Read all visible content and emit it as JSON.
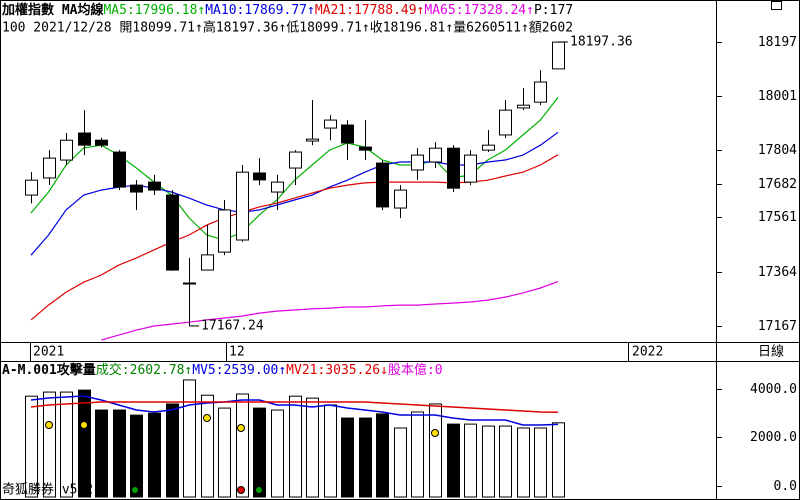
{
  "chart_data": [
    {
      "type": "candlestick",
      "title": "加權指數 MA均線",
      "info": "100 2021/12/28 開18099.71↑高18197.36↑低18099.71↑收18196.81↑量6260511↑額2602",
      "ylim": [
        17109,
        18277
      ],
      "yticks": [
        17167,
        17364,
        17561,
        17682,
        17804,
        18001,
        18197
      ],
      "up_color": "#ffffff",
      "down_color": "#000000",
      "open": [
        17642,
        17704,
        17769,
        17867,
        17841,
        17798,
        17678,
        17689,
        17642,
        17323,
        17370,
        17435,
        17479,
        17722,
        17653,
        17740,
        17838,
        17885,
        17896,
        17816,
        17758,
        17595,
        17733,
        17762,
        17812,
        17689,
        17805,
        17860,
        17958,
        17979,
        18099.71
      ],
      "high": [
        17725,
        17805,
        17867,
        17950,
        17850,
        17805,
        17696,
        17715,
        17660,
        17414,
        17533,
        17624,
        17751,
        17776,
        17715,
        17805,
        17987,
        17932,
        17914,
        17914,
        17769,
        17678,
        17812,
        17834,
        17823,
        17805,
        17878,
        17987,
        18030,
        18095,
        18197.36
      ],
      "low": [
        17612,
        17679,
        17751,
        17787,
        17815,
        17660,
        17588,
        17642,
        17367,
        17167.24,
        17370,
        17424,
        17472,
        17678,
        17588,
        17678,
        17823,
        17841,
        17769,
        17769,
        17588,
        17559,
        17697,
        17740,
        17653,
        17678,
        17798,
        17849,
        17950,
        17968,
        18099.71
      ],
      "close": [
        17696,
        17776,
        17841,
        17823,
        17823,
        17671,
        17653,
        17660,
        17370,
        17323,
        17425,
        17588,
        17725,
        17697,
        17689,
        17798,
        17845,
        17914,
        17831,
        17805,
        17599,
        17660,
        17787,
        17812,
        17667,
        17787,
        17823,
        17950,
        17968,
        18052,
        18196.81
      ],
      "series": [
        {
          "label": "MA5:17996.18↑",
          "color": "#00b000",
          "values": [
            17577,
            17653,
            17751,
            17813,
            17823,
            17787,
            17740,
            17689,
            17642,
            17559,
            17497,
            17479,
            17508,
            17570,
            17624,
            17696,
            17751,
            17805,
            17831,
            17816,
            17769,
            17751,
            17751,
            17769,
            17704,
            17715,
            17769,
            17805,
            17860,
            17914,
            17996.18
          ]
        },
        {
          "label": "MA10:17869.77↑",
          "color": "#0000e0",
          "values": [
            17424,
            17497,
            17588,
            17642,
            17660,
            17671,
            17678,
            17667,
            17653,
            17631,
            17606,
            17588,
            17580,
            17588,
            17606,
            17624,
            17642,
            17671,
            17696,
            17725,
            17751,
            17762,
            17762,
            17762,
            17751,
            17751,
            17762,
            17769,
            17787,
            17823,
            17869.77
          ]
        },
        {
          "label": "MA21:17788.49↑",
          "color": "#e00000",
          "values": [
            17189,
            17243,
            17290,
            17326,
            17352,
            17388,
            17414,
            17443,
            17472,
            17497,
            17533,
            17559,
            17580,
            17599,
            17613,
            17631,
            17649,
            17667,
            17678,
            17686,
            17689,
            17689,
            17689,
            17689,
            17686,
            17689,
            17696,
            17711,
            17725,
            17751,
            17788.49
          ]
        },
        {
          "label": "MA65:17328.24↑",
          "color": "#e000e0",
          "values": [
            null,
            null,
            null,
            null,
            17116,
            17134,
            17152,
            17167,
            17174,
            17181,
            17189,
            17196,
            17203,
            17214,
            17221,
            17225,
            17229,
            17232,
            17236,
            17236,
            17240,
            17243,
            17243,
            17247,
            17250,
            17254,
            17261,
            17272,
            17287,
            17305,
            17328.24
          ]
        }
      ],
      "extra_label": "P:177",
      "annotations": [
        {
          "label": "18197.36",
          "value": 18197.36
        },
        {
          "label": "17167.24",
          "value": 17167.24
        }
      ],
      "x_labels": [
        "2021",
        "12",
        "2022"
      ],
      "period": "日線"
    },
    {
      "type": "bar",
      "title": "A-M.001攻擊量",
      "ylim": [
        -453,
        5109
      ],
      "yticks": [
        {
          "value": 0,
          "label": "0.0"
        },
        {
          "value": 2000,
          "label": "2000.0"
        },
        {
          "value": 4000,
          "label": "4000.0"
        }
      ],
      "values_label": "成交:2602.78↑",
      "values_color": "#008000",
      "values": [
        3700,
        3870,
        3870,
        3950,
        3130,
        3130,
        2920,
        3000,
        3380,
        4370,
        3740,
        3210,
        3790,
        3210,
        3130,
        3700,
        3620,
        3340,
        2800,
        2800,
        2970,
        2390,
        3050,
        3380,
        2550,
        2550,
        2470,
        2470,
        2390,
        2390,
        2602.78
      ],
      "series": [
        {
          "label": "MV5:2539.00↑",
          "color": "#0000e0",
          "values": [
            3543,
            3626,
            3667,
            3708,
            3543,
            3337,
            3131,
            3049,
            3131,
            3337,
            3420,
            3461,
            3543,
            3543,
            3337,
            3337,
            3255,
            3337,
            3214,
            3131,
            3049,
            2925,
            2925,
            2925,
            2802,
            2719,
            2719,
            2719,
            2513,
            2513,
            2539.0
          ]
        },
        {
          "label": "MV21:3035.26↓",
          "color": "#e00000",
          "values": [
            3255,
            3337,
            3378,
            3420,
            3461,
            3461,
            3461,
            3461,
            3461,
            3461,
            3461,
            3461,
            3461,
            3461,
            3461,
            3461,
            3461,
            3461,
            3461,
            3461,
            3420,
            3378,
            3337,
            3296,
            3255,
            3214,
            3172,
            3131,
            3090,
            3049,
            3035.26
          ]
        }
      ],
      "extra_label": "股本億:0",
      "extra_color": "#e000e0",
      "footer": "奇狐勝券 v5.2"
    }
  ]
}
